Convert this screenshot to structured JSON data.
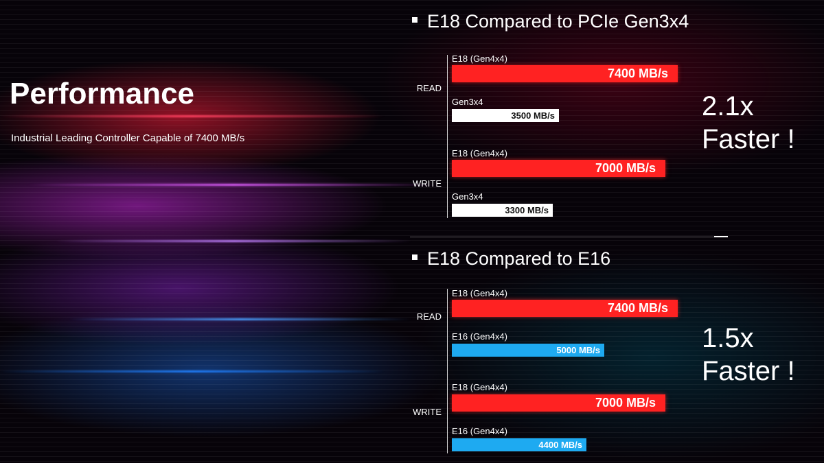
{
  "header": {
    "title": "Performance",
    "subtitle": "Industrial Leading Controller Capable of 7400 MB/s"
  },
  "colors": {
    "e18": "#ff2222",
    "gen3": "#ffffff",
    "e16": "#1eaaf1"
  },
  "chart_data": [
    {
      "type": "bar",
      "title": "E18 Compared to PCIe Gen3x4",
      "unit": "MB/s",
      "groups": [
        {
          "label": "READ",
          "bars": [
            {
              "name": "E18 (Gen4x4)",
              "value": 7400,
              "text": "7400 MB/s",
              "color": "#ff2222",
              "text_color": "#ffffff"
            },
            {
              "name": "Gen3x4",
              "value": 3500,
              "text": "3500 MB/s",
              "color": "#ffffff",
              "text_color": "#111111"
            }
          ]
        },
        {
          "label": "WRITE",
          "bars": [
            {
              "name": "E18 (Gen4x4)",
              "value": 7000,
              "text": "7000 MB/s",
              "color": "#ff2222",
              "text_color": "#ffffff"
            },
            {
              "name": "Gen3x4",
              "value": 3300,
              "text": "3300 MB/s",
              "color": "#ffffff",
              "text_color": "#111111"
            }
          ]
        }
      ],
      "annotation": [
        "2.1x",
        "Faster !"
      ],
      "xlim": [
        0,
        7400
      ]
    },
    {
      "type": "bar",
      "title": "E18 Compared to E16",
      "unit": "MB/s",
      "groups": [
        {
          "label": "READ",
          "bars": [
            {
              "name": "E18 (Gen4x4)",
              "value": 7400,
              "text": "7400 MB/s",
              "color": "#ff2222",
              "text_color": "#ffffff"
            },
            {
              "name": "E16 (Gen4x4)",
              "value": 5000,
              "text": "5000 MB/s",
              "color": "#1eaaf1",
              "text_color": "#ffffff"
            }
          ]
        },
        {
          "label": "WRITE",
          "bars": [
            {
              "name": "E18 (Gen4x4)",
              "value": 7000,
              "text": "7000 MB/s",
              "color": "#ff2222",
              "text_color": "#ffffff"
            },
            {
              "name": "E16 (Gen4x4)",
              "value": 4400,
              "text": "4400 MB/s",
              "color": "#1eaaf1",
              "text_color": "#ffffff"
            }
          ]
        }
      ],
      "annotation": [
        "1.5x",
        "Faster !"
      ],
      "xlim": [
        0,
        7400
      ]
    }
  ]
}
